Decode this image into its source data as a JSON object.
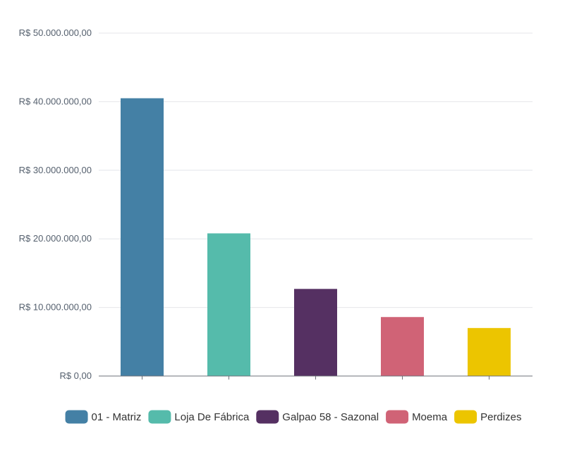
{
  "chart_data": {
    "type": "bar",
    "categories": [
      "01 - Matriz",
      "Loja De Fábrica",
      "Galpao 58 - Sazonal",
      "Moema",
      "Perdizes"
    ],
    "values": [
      40500000,
      20800000,
      12700000,
      8600000,
      7000000
    ],
    "colors": [
      "#4480a5",
      "#55bbab",
      "#553062",
      "#d06376",
      "#ecc500"
    ],
    "ylim": [
      0,
      50000000
    ],
    "yticks": [
      0,
      10000000,
      20000000,
      30000000,
      40000000,
      50000000
    ],
    "ytick_labels": [
      "R$ 0,00",
      "R$ 10.000.000,00",
      "R$ 20.000.000,00",
      "R$ 30.000.000,00",
      "R$ 40.000.000,00",
      "R$ 50.000.000,00"
    ],
    "grid": true,
    "legend": "bottom",
    "title": "",
    "xlabel": "",
    "ylabel": ""
  }
}
